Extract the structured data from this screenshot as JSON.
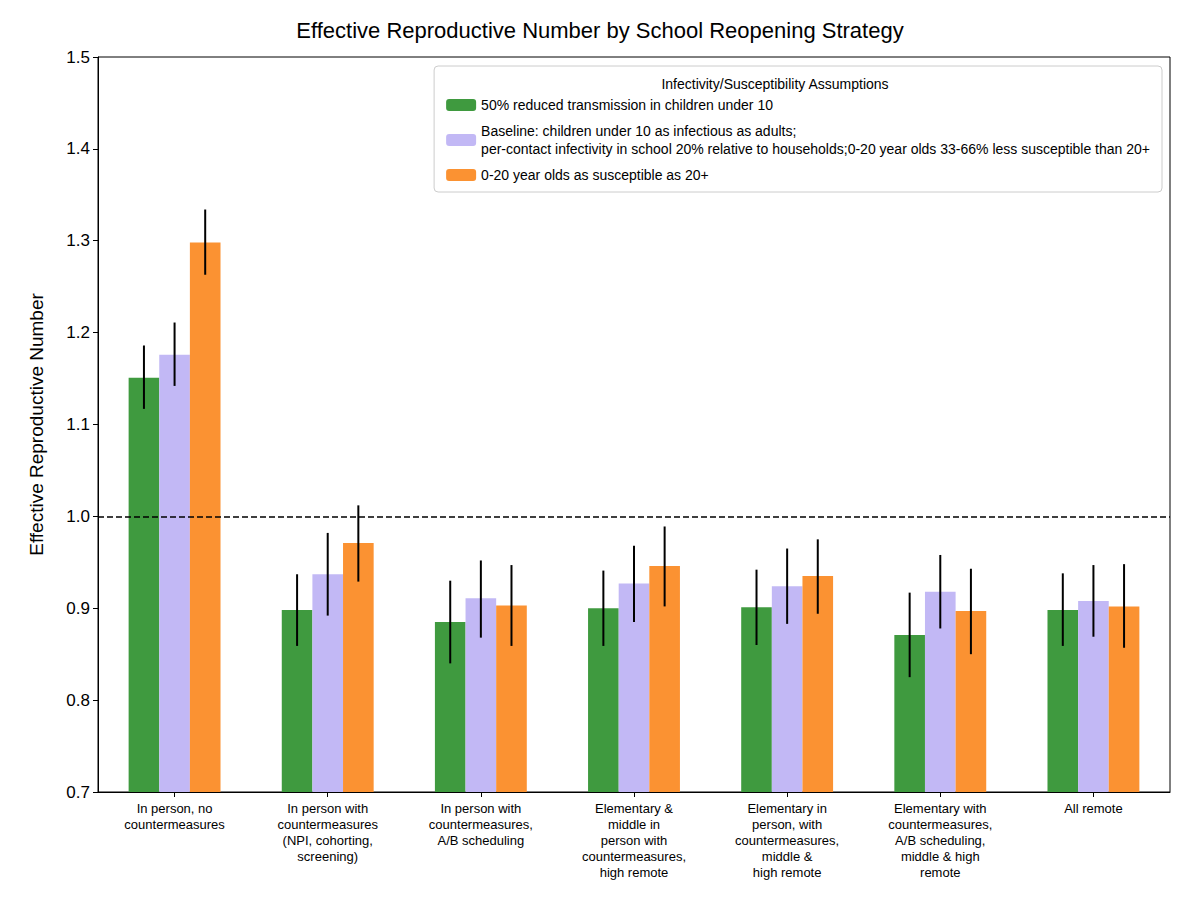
{
  "chart_data": {
    "type": "bar",
    "title": "Effective Reproductive Number by School Reopening Strategy",
    "y_label": "Effective Reproductive Number",
    "legend_title": "Infectivity/Susceptibility Assumptions",
    "legend": "upper right",
    "grid": false,
    "categories": [
      "In person, no\ncountermeasures",
      "In person with\ncountermeasures\n(NPI, cohorting,\nscreening)",
      "In person with\ncountermeasures,\nA/B scheduling",
      "Elementary &\nmiddle in\nperson with\ncountermeasures,\nhigh remote",
      "Elementary in\nperson, with\ncountermeasures,\nmiddle &\nhigh remote",
      "Elementary with\ncountermeasures,\nA/B scheduling,\nmiddle & high\nremote",
      "All remote"
    ],
    "series": [
      {
        "name": "50% reduced transmission in children under 10",
        "color": "#3f9a3f",
        "values": [
          1.151,
          0.898,
          0.885,
          0.9,
          0.901,
          0.871,
          0.898
        ],
        "error_bars": [
          [
            1.117,
            1.186
          ],
          [
            0.859,
            0.937
          ],
          [
            0.84,
            0.93
          ],
          [
            0.859,
            0.941
          ],
          [
            0.86,
            0.942
          ],
          [
            0.825,
            0.917
          ],
          [
            0.859,
            0.938
          ]
        ]
      },
      {
        "name": "Baseline: children under 10 as infectious as adults;\nper-contact infectivity in school 20% relative to households;0-20 year olds 33-66% less susceptible than 20+",
        "color": "#c2b8f5",
        "values": [
          1.176,
          0.937,
          0.911,
          0.927,
          0.924,
          0.918,
          0.908
        ],
        "error_bars": [
          [
            1.142,
            1.211
          ],
          [
            0.892,
            0.982
          ],
          [
            0.868,
            0.952
          ],
          [
            0.885,
            0.968
          ],
          [
            0.883,
            0.965
          ],
          [
            0.878,
            0.958
          ],
          [
            0.869,
            0.947
          ]
        ]
      },
      {
        "name": "0-20 year olds as susceptible as 20+",
        "color": "#fb9232",
        "values": [
          1.298,
          0.971,
          0.903,
          0.946,
          0.935,
          0.897,
          0.902
        ],
        "error_bars": [
          [
            1.263,
            1.334
          ],
          [
            0.929,
            1.012
          ],
          [
            0.859,
            0.947
          ],
          [
            0.902,
            0.989
          ],
          [
            0.894,
            0.975
          ],
          [
            0.85,
            0.943
          ],
          [
            0.857,
            0.948
          ]
        ]
      }
    ],
    "hline": {
      "value": 1,
      "line_style": "dashed"
    },
    "ylim": [
      0.7,
      1.5
    ],
    "yticks": [
      0.7,
      0.8,
      0.9,
      {
        "value": 1,
        "label": "1.0"
      },
      1.1,
      1.2,
      1.3,
      1.4,
      1.5
    ]
  }
}
